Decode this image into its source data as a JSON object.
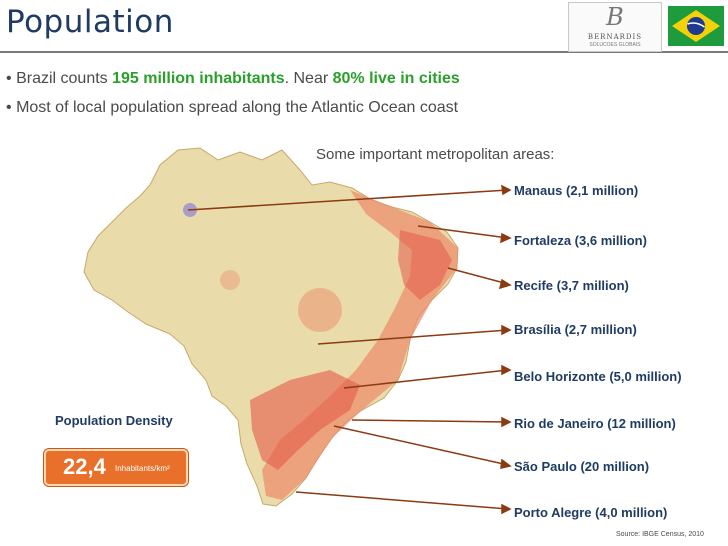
{
  "header": {
    "title": "Population",
    "logo_letter": "B",
    "logo_word": "BERNARDIS",
    "logo_sub": "SOLUCOES GLOBAIS"
  },
  "bullets": [
    {
      "pre": "Brazil counts ",
      "hl1": "195 million inhabitants",
      "mid": ". Near ",
      "hl2": "80% live in cities"
    },
    {
      "text": "Most of local population spread along the Atlantic Ocean coast"
    }
  ],
  "bullet_marker": "•",
  "subheading": "Some important metropolitan areas:",
  "cities": [
    {
      "label": "Manaus (2,1 million)"
    },
    {
      "label": "Fortaleza (3,6 million)"
    },
    {
      "label": "Recife (3,7 million)"
    },
    {
      "label": "Brasília (2,7 million)"
    },
    {
      "label": "Belo Horizonte (5,0 million)"
    },
    {
      "label": "Rio de Janeiro (12 million)"
    },
    {
      "label": "São Paulo (20 million)"
    },
    {
      "label": "Porto Alegre (4,0 million)"
    }
  ],
  "density": {
    "label": "Population Density",
    "value": "22,4",
    "unit": "Inhabitants/km²"
  },
  "source": "Source: IBGE Census, 2010",
  "colors": {
    "title": "#1f3b63",
    "highlight": "#2aa02a",
    "arrow": "#8b3a12",
    "map_base": "#e9dcaa",
    "density_box": "#e8702a"
  }
}
